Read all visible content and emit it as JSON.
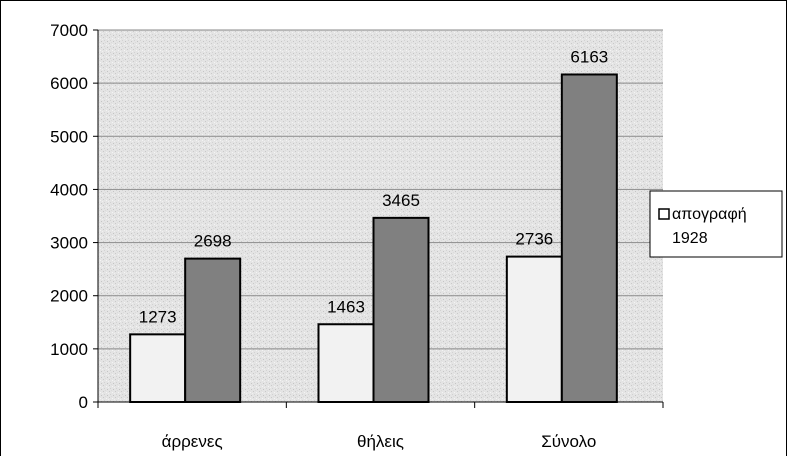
{
  "chart_data": {
    "type": "bar",
    "title": "",
    "xlabel": "",
    "ylabel": "",
    "categories": [
      "άρρενες",
      "θήλεις",
      "Σύνολο"
    ],
    "series": [
      {
        "name": "απογραφή 1928",
        "values": [
          1273,
          1463,
          2736
        ],
        "color": "#f2f2f2"
      },
      {
        "values": [
          2698,
          3465,
          6163
        ],
        "color": "#808080"
      }
    ],
    "ylim": [
      0,
      7000
    ],
    "yticks": [
      0,
      1000,
      2000,
      3000,
      4000,
      5000,
      6000,
      7000
    ],
    "grid": true,
    "legend_position": "right",
    "legend_lines": [
      "απογραφή",
      "1928"
    ],
    "plot_background": "#e6e6e6"
  }
}
